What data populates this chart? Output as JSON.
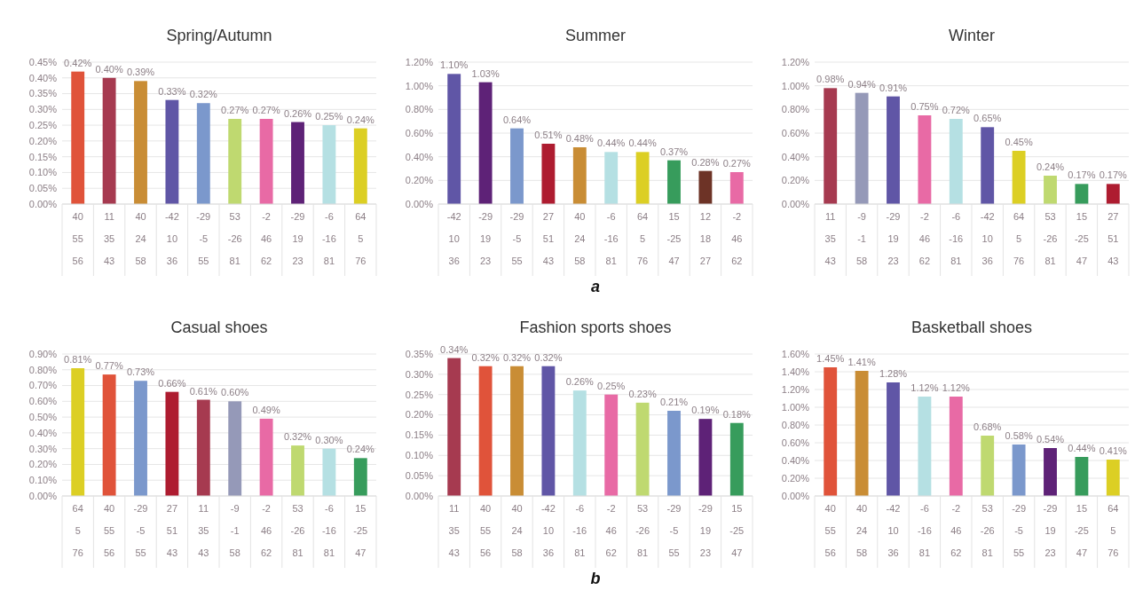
{
  "chart_data": [
    {
      "type": "bar",
      "title": "Spring/Autumn",
      "categories": [
        "40\n55\n56",
        "11\n35\n43",
        "40\n24\n58",
        "-42\n10\n36",
        "-29\n-5\n55",
        "53\n-26\n81",
        "-2\n46\n62",
        "-29\n19\n23",
        "-6\n-16\n81",
        "64\n5\n76"
      ],
      "values": [
        0.42,
        0.4,
        0.39,
        0.33,
        0.32,
        0.27,
        0.27,
        0.26,
        0.25,
        0.24
      ],
      "value_labels": [
        "0.42%",
        "0.40%",
        "0.39%",
        "0.33%",
        "0.32%",
        "0.27%",
        "0.27%",
        "0.26%",
        "0.25%",
        "0.24%"
      ],
      "colors": [
        "#e0533a",
        "#a63a50",
        "#c98d35",
        "#6056a6",
        "#7b98cc",
        "#bfd970",
        "#e86aa5",
        "#5e2277",
        "#b5e0e3",
        "#dccf24"
      ],
      "ylim": [
        0,
        0.45
      ],
      "yticks": [
        {
          "value": 0,
          "label": "0.00%"
        },
        {
          "value": 0.05,
          "label": "0.05%"
        },
        {
          "value": 0.1,
          "label": "0.10%"
        },
        {
          "value": 0.15,
          "label": "0.15%"
        },
        {
          "value": 0.2,
          "label": "0.20%"
        },
        {
          "value": 0.25,
          "label": "0.25%"
        },
        {
          "value": 0.3,
          "label": "0.30%"
        },
        {
          "value": 0.35,
          "label": "0.35%"
        },
        {
          "value": 0.4,
          "label": "0.40%"
        },
        {
          "value": 0.45,
          "label": "0.45%"
        }
      ],
      "grid": "y"
    },
    {
      "type": "bar",
      "title": "Summer",
      "categories": [
        "-42\n10\n36",
        "-29\n19\n23",
        "-29\n-5\n55",
        "27\n51\n43",
        "40\n24\n58",
        "-6\n-16\n81",
        "64\n5\n76",
        "15\n-25\n47",
        "12\n18\n27",
        "-2\n46\n62"
      ],
      "values": [
        1.1,
        1.03,
        0.64,
        0.51,
        0.48,
        0.44,
        0.44,
        0.37,
        0.28,
        0.27
      ],
      "value_labels": [
        "1.10%",
        "1.03%",
        "0.64%",
        "0.51%",
        "0.48%",
        "0.44%",
        "0.44%",
        "0.37%",
        "0.28%",
        "0.27%"
      ],
      "colors": [
        "#6056a6",
        "#5e2277",
        "#7b98cc",
        "#ae1c30",
        "#c98d35",
        "#b5e0e3",
        "#dccf24",
        "#379c5c",
        "#6d3326",
        "#e86aa5"
      ],
      "ylim": [
        0,
        1.2
      ],
      "yticks": [
        {
          "value": 0,
          "label": "0.00%"
        },
        {
          "value": 0.2,
          "label": "0.20%"
        },
        {
          "value": 0.4,
          "label": "0.40%"
        },
        {
          "value": 0.6,
          "label": "0.60%"
        },
        {
          "value": 0.8,
          "label": "0.80%"
        },
        {
          "value": 1.0,
          "label": "1.00%"
        },
        {
          "value": 1.2,
          "label": "1.20%"
        }
      ],
      "grid": "y",
      "annotations": [
        "a"
      ]
    },
    {
      "type": "bar",
      "title": "Winter",
      "categories": [
        "11\n35\n43",
        "-9\n-1\n58",
        "-29\n19\n23",
        "-2\n46\n62",
        "-6\n-16\n81",
        "-42\n10\n36",
        "64\n5\n76",
        "53\n-26\n81",
        "15\n-25\n47",
        "27\n51\n43"
      ],
      "values": [
        0.98,
        0.94,
        0.91,
        0.75,
        0.72,
        0.65,
        0.45,
        0.24,
        0.17,
        0.17
      ],
      "value_labels": [
        "0.98%",
        "0.94%",
        "0.91%",
        "0.75%",
        "0.72%",
        "0.65%",
        "0.45%",
        "0.24%",
        "0.17%",
        "0.17%"
      ],
      "colors": [
        "#a63a50",
        "#9599b8",
        "#6056a6",
        "#e86aa5",
        "#b5e0e3",
        "#6056a6",
        "#dccf24",
        "#bfd970",
        "#379c5c",
        "#ae1c30"
      ],
      "ylim": [
        0,
        1.2
      ],
      "yticks": [
        {
          "value": 0,
          "label": "0.00%"
        },
        {
          "value": 0.2,
          "label": "0.20%"
        },
        {
          "value": 0.4,
          "label": "0.40%"
        },
        {
          "value": 0.6,
          "label": "0.60%"
        },
        {
          "value": 0.8,
          "label": "0.80%"
        },
        {
          "value": 1.0,
          "label": "1.00%"
        },
        {
          "value": 1.2,
          "label": "1.20%"
        }
      ],
      "grid": "y"
    },
    {
      "type": "bar",
      "title": "Casual shoes",
      "categories": [
        "64\n5\n76",
        "40\n55\n56",
        "-29\n-5\n55",
        "27\n51\n43",
        "11\n35\n43",
        "-9\n-1\n58",
        "-2\n46\n62",
        "53\n-26\n81",
        "-6\n-16\n81",
        "15\n-25\n47"
      ],
      "values": [
        0.81,
        0.77,
        0.73,
        0.66,
        0.61,
        0.6,
        0.49,
        0.32,
        0.3,
        0.24
      ],
      "value_labels": [
        "0.81%",
        "0.77%",
        "0.73%",
        "0.66%",
        "0.61%",
        "0.60%",
        "0.49%",
        "0.32%",
        "0.30%",
        "0.24%"
      ],
      "colors": [
        "#dccf24",
        "#e0533a",
        "#7b98cc",
        "#ae1c30",
        "#a63a50",
        "#9599b8",
        "#e86aa5",
        "#bfd970",
        "#b5e0e3",
        "#379c5c"
      ],
      "ylim": [
        0,
        0.9
      ],
      "yticks": [
        {
          "value": 0,
          "label": "0.00%"
        },
        {
          "value": 0.1,
          "label": "0.10%"
        },
        {
          "value": 0.2,
          "label": "0.20%"
        },
        {
          "value": 0.3,
          "label": "0.30%"
        },
        {
          "value": 0.4,
          "label": "0.40%"
        },
        {
          "value": 0.5,
          "label": "0.50%"
        },
        {
          "value": 0.6,
          "label": "0.60%"
        },
        {
          "value": 0.7,
          "label": "0.70%"
        },
        {
          "value": 0.8,
          "label": "0.80%"
        },
        {
          "value": 0.9,
          "label": "0.90%"
        }
      ],
      "grid": "y"
    },
    {
      "type": "bar",
      "title": "Fashion sports shoes",
      "categories": [
        "11\n35\n43",
        "40\n55\n56",
        "40\n24\n58",
        "-42\n10\n36",
        "-6\n-16\n81",
        "-2\n46\n62",
        "53\n-26\n81",
        "-29\n-5\n55",
        "-29\n19\n23",
        "15\n-25\n47"
      ],
      "values": [
        0.34,
        0.32,
        0.32,
        0.32,
        0.26,
        0.25,
        0.23,
        0.21,
        0.19,
        0.18
      ],
      "value_labels": [
        "0.34%",
        "0.32%",
        "0.32%",
        "0.32%",
        "0.26%",
        "0.25%",
        "0.23%",
        "0.21%",
        "0.19%",
        "0.18%"
      ],
      "colors": [
        "#a63a50",
        "#e0533a",
        "#c98d35",
        "#6056a6",
        "#b5e0e3",
        "#e86aa5",
        "#bfd970",
        "#7b98cc",
        "#5e2277",
        "#379c5c"
      ],
      "ylim": [
        0,
        0.35
      ],
      "yticks": [
        {
          "value": 0,
          "label": "0.00%"
        },
        {
          "value": 0.05,
          "label": "0.05%"
        },
        {
          "value": 0.1,
          "label": "0.10%"
        },
        {
          "value": 0.15,
          "label": "0.15%"
        },
        {
          "value": 0.2,
          "label": "0.20%"
        },
        {
          "value": 0.25,
          "label": "0.25%"
        },
        {
          "value": 0.3,
          "label": "0.30%"
        },
        {
          "value": 0.35,
          "label": "0.35%"
        }
      ],
      "grid": "y",
      "annotations": [
        "b"
      ]
    },
    {
      "type": "bar",
      "title": "Basketball shoes",
      "categories": [
        "40\n55\n56",
        "40\n24\n58",
        "-42\n10\n36",
        "-6\n-16\n81",
        "-2\n46\n62",
        "53\n-26\n81",
        "-29\n-5\n55",
        "-29\n19\n23",
        "15\n-25\n47",
        "64\n5\n76"
      ],
      "values": [
        1.45,
        1.41,
        1.28,
        1.12,
        1.12,
        0.68,
        0.58,
        0.54,
        0.44,
        0.41
      ],
      "value_labels": [
        "1.45%",
        "1.41%",
        "1.28%",
        "1.12%",
        "1.12%",
        "0.68%",
        "0.58%",
        "0.54%",
        "0.44%",
        "0.41%"
      ],
      "colors": [
        "#e0533a",
        "#c98d35",
        "#6056a6",
        "#b5e0e3",
        "#e86aa5",
        "#bfd970",
        "#7b98cc",
        "#5e2277",
        "#379c5c",
        "#dccf24"
      ],
      "ylim": [
        0,
        1.6
      ],
      "yticks": [
        {
          "value": 0,
          "label": "0.00%"
        },
        {
          "value": 0.2,
          "label": "0.20%"
        },
        {
          "value": 0.4,
          "label": "0.40%"
        },
        {
          "value": 0.6,
          "label": "0.60%"
        },
        {
          "value": 0.8,
          "label": "0.80%"
        },
        {
          "value": 1.0,
          "label": "1.00%"
        },
        {
          "value": 1.2,
          "label": "1.20%"
        },
        {
          "value": 1.4,
          "label": "1.40%"
        },
        {
          "value": 1.6,
          "label": "1.60%"
        }
      ],
      "grid": "y"
    }
  ]
}
